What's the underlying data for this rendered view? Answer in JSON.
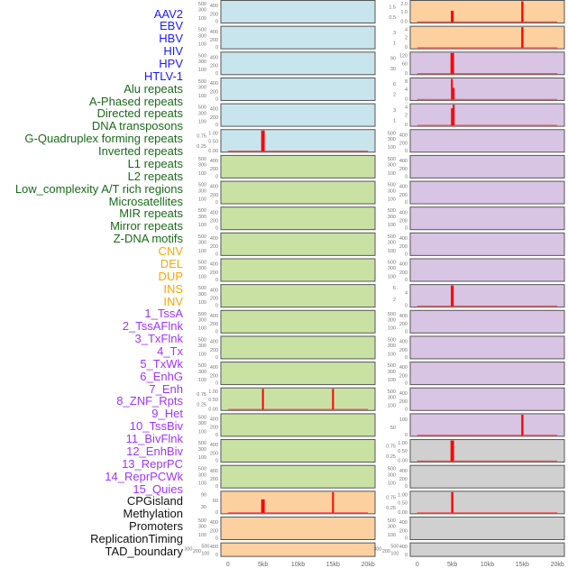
{
  "chart_data": {
    "type": "bar",
    "xlabel": "",
    "xlim": [
      -1000,
      21000
    ],
    "x_ticks": [
      0,
      5000,
      10000,
      15000,
      20000
    ],
    "x_tick_labels": [
      "0",
      "5kb",
      "10kb",
      "15kb",
      "20kb"
    ],
    "group_colors": {
      "virus": {
        "label": "#1a1aff",
        "panel": "#c8e4ec"
      },
      "repeat": {
        "label": "#1a6b1a",
        "panel": "#c9e2a4"
      },
      "sv": {
        "label": "#ffa500",
        "panel": "#fdd09f"
      },
      "chromatin": {
        "label": "#a033ff",
        "panel": "#d7c5e3"
      },
      "other": {
        "label": "#111111",
        "panel": "#d0d0d0"
      }
    },
    "bar_color": "#ff0000",
    "panels": [
      {
        "name": "AAV2",
        "group": "virus",
        "yticks": [
          "0",
          "100",
          "200",
          "300",
          "400",
          "500"
        ],
        "ymax": 500,
        "bars": []
      },
      {
        "name": "EBV",
        "group": "virus",
        "yticks": [
          "0",
          "100",
          "200",
          "300",
          "400",
          "500"
        ],
        "ymax": 500,
        "bars": []
      },
      {
        "name": "HBV",
        "group": "virus",
        "yticks": [
          "0",
          "100",
          "200",
          "300",
          "400",
          "500"
        ],
        "ymax": 500,
        "bars": []
      },
      {
        "name": "HIV",
        "group": "virus",
        "yticks": [
          "0",
          "100",
          "200",
          "300",
          "400",
          "500"
        ],
        "ymax": 500,
        "bars": []
      },
      {
        "name": "HPV",
        "group": "virus",
        "yticks": [
          "0",
          "100",
          "200",
          "300",
          "400",
          "500"
        ],
        "ymax": 500,
        "bars": []
      },
      {
        "name": "HTLV-1",
        "group": "virus",
        "yticks": [
          "0.00",
          "0.25",
          "0.50",
          "0.75",
          "1.00"
        ],
        "ymax": 1,
        "bars": [
          {
            "x": 5000,
            "y": 1,
            "w": 500
          }
        ]
      },
      {
        "name": "Alu repeats",
        "group": "repeat",
        "yticks": [
          "0",
          "100",
          "200",
          "300",
          "400",
          "500"
        ],
        "ymax": 500,
        "bars": []
      },
      {
        "name": "A-Phased repeats",
        "group": "repeat",
        "yticks": [
          "0",
          "100",
          "200",
          "300",
          "400",
          "500"
        ],
        "ymax": 500,
        "bars": []
      },
      {
        "name": "Directed repeats",
        "group": "repeat",
        "yticks": [
          "0",
          "100",
          "200",
          "300",
          "400",
          "500"
        ],
        "ymax": 500,
        "bars": []
      },
      {
        "name": "DNA transposons",
        "group": "repeat",
        "yticks": [
          "0",
          "100",
          "200",
          "300",
          "400",
          "500"
        ],
        "ymax": 500,
        "bars": []
      },
      {
        "name": "G-Quadruplex forming repeats",
        "group": "repeat",
        "yticks": [
          "0",
          "100",
          "200",
          "300",
          "400",
          "500"
        ],
        "ymax": 500,
        "bars": []
      },
      {
        "name": "Inverted repeats",
        "group": "repeat",
        "yticks": [
          "0",
          "100",
          "200",
          "300",
          "400",
          "500"
        ],
        "ymax": 500,
        "bars": []
      },
      {
        "name": "L1 repeats",
        "group": "repeat",
        "yticks": [
          "0",
          "100",
          "200",
          "300",
          "400",
          "500"
        ],
        "ymax": 500,
        "bars": []
      },
      {
        "name": "L2 repeats",
        "group": "repeat",
        "yticks": [
          "0",
          "100",
          "200",
          "300",
          "400",
          "500"
        ],
        "ymax": 500,
        "bars": []
      },
      {
        "name": "Low_complexity A/T rich regions",
        "group": "repeat",
        "yticks": [
          "0",
          "100",
          "200",
          "300",
          "400",
          "500"
        ],
        "ymax": 500,
        "bars": []
      },
      {
        "name": "Microsatellites",
        "group": "repeat",
        "yticks": [
          "0.00",
          "0.25",
          "0.50",
          "0.75",
          "1.00"
        ],
        "ymax": 1,
        "bars": [
          {
            "x": 5000,
            "y": 1,
            "w": 250
          },
          {
            "x": 15000,
            "y": 1,
            "w": 250
          }
        ]
      },
      {
        "name": "MIR repeats",
        "group": "repeat",
        "yticks": [
          "0",
          "100",
          "200",
          "300",
          "400",
          "500"
        ],
        "ymax": 500,
        "bars": []
      },
      {
        "name": "Mirror repeats",
        "group": "repeat",
        "yticks": [
          "0",
          "100",
          "200",
          "300",
          "400",
          "500"
        ],
        "ymax": 500,
        "bars": []
      },
      {
        "name": "Z-DNA motifs",
        "group": "repeat",
        "yticks": [
          "0",
          "100",
          "200",
          "300",
          "400",
          "500"
        ],
        "ymax": 500,
        "bars": []
      },
      {
        "name": "CNV",
        "group": "sv",
        "yticks": [
          "0",
          "30",
          "60",
          "90"
        ],
        "ymax": 100,
        "bars": [
          {
            "x": 5000,
            "y": 65,
            "w": 500
          },
          {
            "x": 15000,
            "y": 100,
            "w": 250
          }
        ]
      },
      {
        "name": "DEL",
        "group": "sv",
        "yticks": [
          "0",
          "100",
          "200",
          "300",
          "400",
          "500"
        ],
        "ymax": 500,
        "bars": []
      },
      {
        "name": "DUP",
        "group": "sv",
        "yticks": [
          "0",
          "100",
          "200",
          "300",
          "400",
          "500"
        ],
        "ymax": 500,
        "bars": []
      },
      {
        "name": "INS",
        "group": "sv",
        "yticks": [
          "0.0",
          "0.5",
          "1.0",
          "1.5",
          "2.0"
        ],
        "ymax": 2,
        "bars": [
          {
            "x": 5000,
            "y": 1.1,
            "w": 400
          },
          {
            "x": 15000,
            "y": 2,
            "w": 300
          }
        ]
      },
      {
        "name": "INV",
        "group": "sv",
        "yticks": [
          "0",
          "1",
          "2",
          "3",
          "4"
        ],
        "ymax": 4,
        "bars": [
          {
            "x": 15000,
            "y": 4,
            "w": 300
          }
        ]
      },
      {
        "name": "1_TssA",
        "group": "chromatin",
        "yticks": [
          "0",
          "30",
          "60",
          "90",
          "120"
        ],
        "ymax": 120,
        "bars": [
          {
            "x": 5000,
            "y": 120,
            "w": 500
          }
        ]
      },
      {
        "name": "2_TssAFlnk",
        "group": "chromatin",
        "yticks": [
          "0",
          "2",
          "4",
          "6",
          "8"
        ],
        "ymax": 8,
        "bars": [
          {
            "x": 4950,
            "y": 8,
            "w": 250
          },
          {
            "x": 5200,
            "y": 4.5,
            "w": 250
          }
        ]
      },
      {
        "name": "3_TxFlnk",
        "group": "chromatin",
        "yticks": [
          "0",
          "1",
          "2",
          "3",
          "4"
        ],
        "ymax": 4,
        "bars": [
          {
            "x": 4950,
            "y": 3.3,
            "w": 250
          },
          {
            "x": 5200,
            "y": 4,
            "w": 250
          }
        ]
      },
      {
        "name": "4_Tx",
        "group": "chromatin",
        "yticks": [
          "0",
          "100",
          "200",
          "300",
          "400",
          "500"
        ],
        "ymax": 500,
        "bars": []
      },
      {
        "name": "5_TxWk",
        "group": "chromatin",
        "yticks": [
          "0",
          "100",
          "200",
          "300",
          "400",
          "500"
        ],
        "ymax": 500,
        "bars": []
      },
      {
        "name": "6_EnhG",
        "group": "chromatin",
        "yticks": [
          "0",
          "100",
          "200",
          "300",
          "400",
          "500"
        ],
        "ymax": 500,
        "bars": []
      },
      {
        "name": "7_Enh",
        "group": "chromatin",
        "yticks": [
          "0",
          "100",
          "200",
          "300",
          "400",
          "500"
        ],
        "ymax": 500,
        "bars": []
      },
      {
        "name": "8_ZNF_Rpts",
        "group": "chromatin",
        "yticks": [
          "0",
          "100",
          "200",
          "300",
          "400",
          "500"
        ],
        "ymax": 500,
        "bars": []
      },
      {
        "name": "9_Het",
        "group": "chromatin",
        "yticks": [
          "0",
          "100",
          "200",
          "300",
          "400",
          "500"
        ],
        "ymax": 500,
        "bars": []
      },
      {
        "name": "10_TssBiv",
        "group": "chromatin",
        "yticks": [
          "0",
          "2",
          "4",
          "6"
        ],
        "ymax": 6,
        "bars": [
          {
            "x": 5000,
            "y": 6,
            "w": 400
          }
        ]
      },
      {
        "name": "11_BivFlnk",
        "group": "chromatin",
        "yticks": [
          "0",
          "100",
          "200",
          "300",
          "400",
          "500"
        ],
        "ymax": 500,
        "bars": []
      },
      {
        "name": "12_EnhBiv",
        "group": "chromatin",
        "yticks": [
          "0",
          "100",
          "200",
          "300",
          "400",
          "500"
        ],
        "ymax": 500,
        "bars": []
      },
      {
        "name": "13_ReprPC",
        "group": "chromatin",
        "yticks": [
          "0",
          "100",
          "200",
          "300",
          "400",
          "500"
        ],
        "ymax": 500,
        "bars": []
      },
      {
        "name": "14_ReprPCWk",
        "group": "chromatin",
        "yticks": [
          "0",
          "100",
          "200",
          "300",
          "400",
          "500"
        ],
        "ymax": 500,
        "bars": []
      },
      {
        "name": "15_Quies",
        "group": "chromatin",
        "yticks": [
          "0",
          "50",
          "100"
        ],
        "ymax": 130,
        "bars": [
          {
            "x": 15000,
            "y": 130,
            "w": 300
          }
        ]
      },
      {
        "name": "CPGisland",
        "group": "other",
        "yticks": [
          "0.00",
          "0.25",
          "0.50",
          "0.75",
          "1.00"
        ],
        "ymax": 1,
        "bars": [
          {
            "x": 5000,
            "y": 1,
            "w": 500
          }
        ]
      },
      {
        "name": "Methylation",
        "group": "other",
        "yticks": [
          "0",
          "100",
          "200",
          "300",
          "400",
          "500"
        ],
        "ymax": 500,
        "bars": []
      },
      {
        "name": "Promoters",
        "group": "other",
        "yticks": [
          "0.00",
          "0.25",
          "0.50",
          "0.75",
          "1.00"
        ],
        "ymax": 1,
        "bars": [
          {
            "x": 5000,
            "y": 1,
            "w": 300
          }
        ]
      },
      {
        "name": "ReplicationTiming",
        "group": "other",
        "yticks": [
          "0",
          "100",
          "200",
          "300",
          "400",
          "500"
        ],
        "ymax": 500,
        "bars": []
      },
      {
        "name": "TAD_boundary",
        "group": "other",
        "yticks": [
          "0",
          "100",
          "200",
          "300",
          "400",
          "500"
        ],
        "ymax": 500,
        "bars": []
      }
    ]
  }
}
